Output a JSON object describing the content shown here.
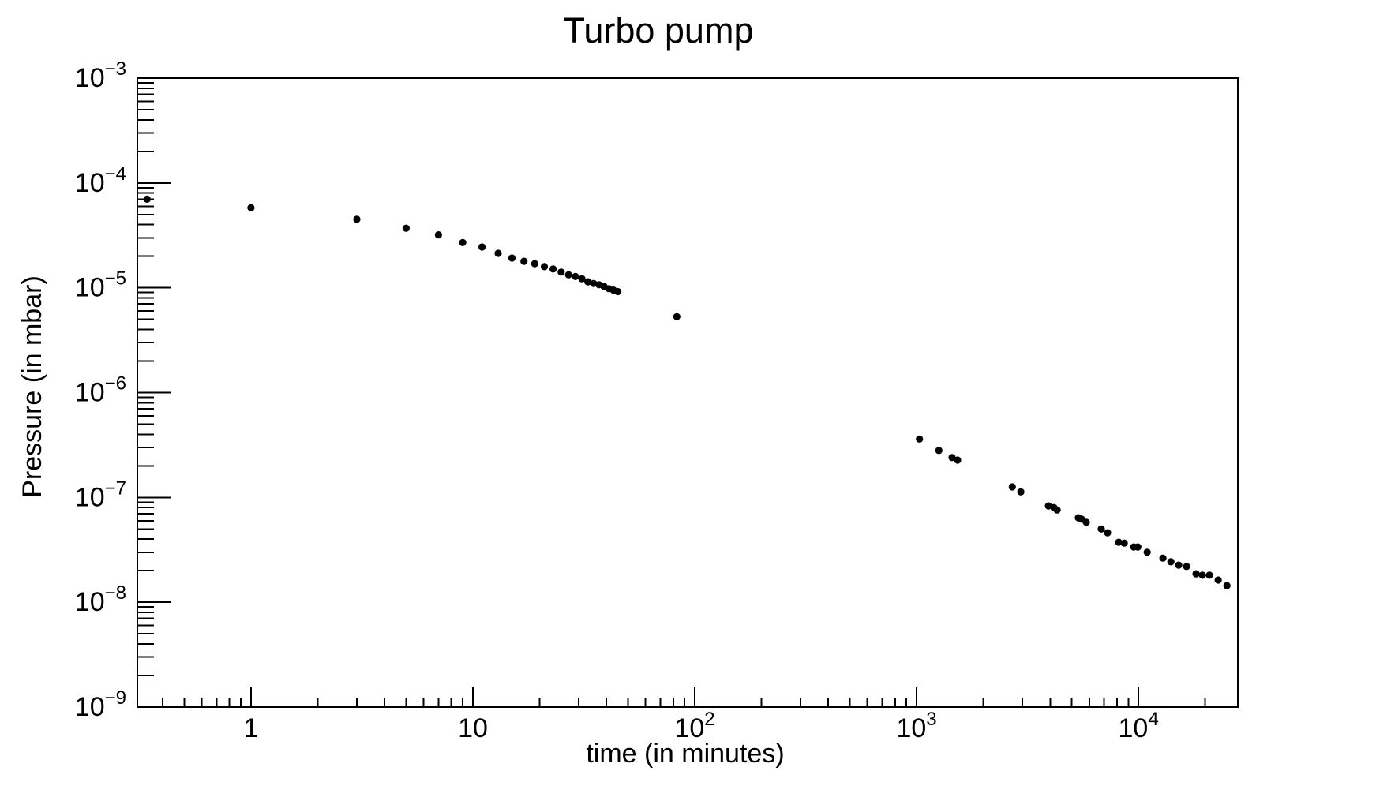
{
  "chart_data": {
    "type": "scatter",
    "title": "Turbo pump",
    "xlabel": "time (in minutes)",
    "ylabel": "Pressure (in mbar)",
    "x_scale": "log",
    "y_scale": "log",
    "xlim": [
      0.3075,
      28050
    ],
    "ylim": [
      1e-09,
      0.001
    ],
    "grid": false,
    "legend": null,
    "axis_color": "#000000",
    "marker": {
      "shape": "filled-circle",
      "color": "#000000",
      "radius": 4.6
    },
    "x_tick_labels": [
      {
        "value": 1,
        "base": "1",
        "exp": ""
      },
      {
        "value": 10,
        "base": "10",
        "exp": ""
      },
      {
        "value": 100,
        "base": "10",
        "exp": "2"
      },
      {
        "value": 1000,
        "base": "10",
        "exp": "3"
      },
      {
        "value": 10000,
        "base": "10",
        "exp": "4"
      }
    ],
    "y_tick_labels": [
      {
        "value": 0.001,
        "base": "10",
        "exp": "−3"
      },
      {
        "value": 0.0001,
        "base": "10",
        "exp": "−4"
      },
      {
        "value": 1e-05,
        "base": "10",
        "exp": "−5"
      },
      {
        "value": 1e-06,
        "base": "10",
        "exp": "−6"
      },
      {
        "value": 1e-07,
        "base": "10",
        "exp": "−7"
      },
      {
        "value": 1e-08,
        "base": "10",
        "exp": "−8"
      },
      {
        "value": 1e-09,
        "base": "10",
        "exp": "−9"
      }
    ],
    "points": [
      [
        0.34,
        7e-05
      ],
      [
        1,
        5.8e-05
      ],
      [
        3,
        4.5e-05
      ],
      [
        5,
        3.7e-05
      ],
      [
        7,
        3.2e-05
      ],
      [
        9,
        2.7e-05
      ],
      [
        11,
        2.45e-05
      ],
      [
        13,
        2.13e-05
      ],
      [
        15,
        1.92e-05
      ],
      [
        17,
        1.79e-05
      ],
      [
        19,
        1.7e-05
      ],
      [
        21,
        1.59e-05
      ],
      [
        23,
        1.51e-05
      ],
      [
        25,
        1.41e-05
      ],
      [
        27,
        1.33e-05
      ],
      [
        29,
        1.28e-05
      ],
      [
        31,
        1.22e-05
      ],
      [
        33,
        1.14e-05
      ],
      [
        35,
        1.1e-05
      ],
      [
        37,
        1.07e-05
      ],
      [
        39,
        1.03e-05
      ],
      [
        41,
        9.8e-06
      ],
      [
        43,
        9.5e-06
      ],
      [
        45,
        9.2e-06
      ],
      [
        83,
        5.3e-06
      ],
      [
        1030,
        3.6e-07
      ],
      [
        1260,
        2.8e-07
      ],
      [
        1445,
        2.4e-07
      ],
      [
        1530,
        2.27e-07
      ],
      [
        2700,
        1.26e-07
      ],
      [
        2950,
        1.13e-07
      ],
      [
        3930,
        8.3e-08
      ],
      [
        4160,
        8e-08
      ],
      [
        4300,
        7.6e-08
      ],
      [
        5360,
        6.4e-08
      ],
      [
        5540,
        6.2e-08
      ],
      [
        5820,
        5.8e-08
      ],
      [
        6800,
        5e-08
      ],
      [
        7260,
        4.6e-08
      ],
      [
        8150,
        3.74e-08
      ],
      [
        8630,
        3.67e-08
      ],
      [
        9530,
        3.37e-08
      ],
      [
        9930,
        3.37e-08
      ],
      [
        10950,
        3e-08
      ],
      [
        12890,
        2.64e-08
      ],
      [
        14000,
        2.43e-08
      ],
      [
        15180,
        2.26e-08
      ],
      [
        16480,
        2.19e-08
      ],
      [
        18190,
        1.87e-08
      ],
      [
        19410,
        1.81e-08
      ],
      [
        20890,
        1.81e-08
      ],
      [
        22870,
        1.63e-08
      ],
      [
        25060,
        1.44e-08
      ]
    ]
  }
}
